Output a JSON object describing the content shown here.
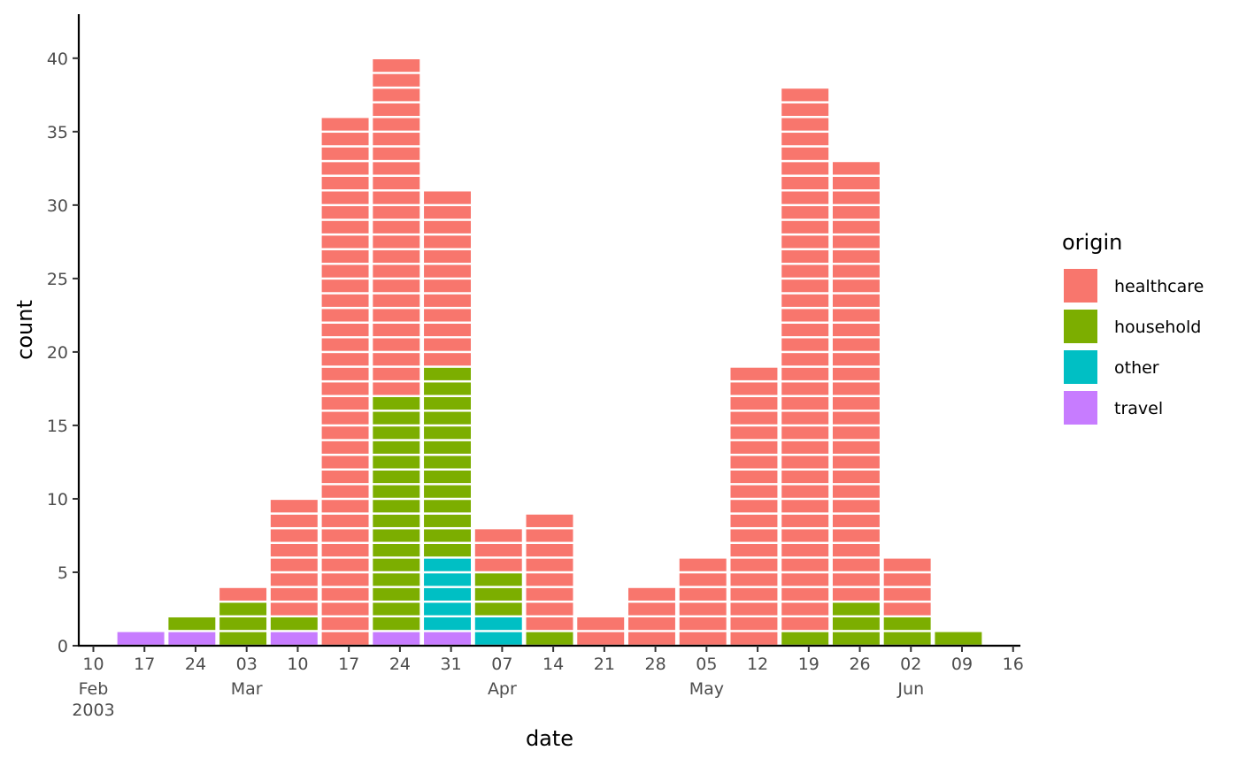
{
  "chart_data": {
    "type": "bar",
    "stacked": true,
    "bar_style": "unit-tiles",
    "xlabel": "date",
    "ylabel": "count",
    "ylim": [
      0,
      43
    ],
    "y_ticks": [
      0,
      5,
      10,
      15,
      20,
      25,
      30,
      35,
      40
    ],
    "x_scale": "date",
    "bin_width_days": 7,
    "xlim": [
      "2003-02-08",
      "2003-06-17"
    ],
    "x_ticks": [
      {
        "date": "2003-02-10",
        "label": "10",
        "sublabel": "Feb\n2003"
      },
      {
        "date": "2003-02-17",
        "label": "17",
        "sublabel": ""
      },
      {
        "date": "2003-02-24",
        "label": "24",
        "sublabel": ""
      },
      {
        "date": "2003-03-03",
        "label": "03",
        "sublabel": "Mar"
      },
      {
        "date": "2003-03-10",
        "label": "10",
        "sublabel": ""
      },
      {
        "date": "2003-03-17",
        "label": "17",
        "sublabel": ""
      },
      {
        "date": "2003-03-24",
        "label": "24",
        "sublabel": ""
      },
      {
        "date": "2003-03-31",
        "label": "31",
        "sublabel": ""
      },
      {
        "date": "2003-04-07",
        "label": "07",
        "sublabel": "Apr"
      },
      {
        "date": "2003-04-14",
        "label": "14",
        "sublabel": ""
      },
      {
        "date": "2003-04-21",
        "label": "21",
        "sublabel": ""
      },
      {
        "date": "2003-04-28",
        "label": "28",
        "sublabel": ""
      },
      {
        "date": "2003-05-05",
        "label": "05",
        "sublabel": "May"
      },
      {
        "date": "2003-05-12",
        "label": "12",
        "sublabel": ""
      },
      {
        "date": "2003-05-19",
        "label": "19",
        "sublabel": ""
      },
      {
        "date": "2003-05-26",
        "label": "26",
        "sublabel": ""
      },
      {
        "date": "2003-06-02",
        "label": "02",
        "sublabel": "Jun"
      },
      {
        "date": "2003-06-09",
        "label": "09",
        "sublabel": ""
      },
      {
        "date": "2003-06-16",
        "label": "16",
        "sublabel": ""
      }
    ],
    "bins": [
      {
        "start": "2003-02-13",
        "end": "2003-02-20"
      },
      {
        "start": "2003-02-20",
        "end": "2003-02-27"
      },
      {
        "start": "2003-02-27",
        "end": "2003-03-06"
      },
      {
        "start": "2003-03-06",
        "end": "2003-03-13"
      },
      {
        "start": "2003-03-13",
        "end": "2003-03-20"
      },
      {
        "start": "2003-03-20",
        "end": "2003-03-27"
      },
      {
        "start": "2003-03-27",
        "end": "2003-04-03"
      },
      {
        "start": "2003-04-03",
        "end": "2003-04-10"
      },
      {
        "start": "2003-04-10",
        "end": "2003-04-17"
      },
      {
        "start": "2003-04-17",
        "end": "2003-04-24"
      },
      {
        "start": "2003-04-24",
        "end": "2003-05-01"
      },
      {
        "start": "2003-05-01",
        "end": "2003-05-08"
      },
      {
        "start": "2003-05-08",
        "end": "2003-05-15"
      },
      {
        "start": "2003-05-15",
        "end": "2003-05-22"
      },
      {
        "start": "2003-05-22",
        "end": "2003-05-29"
      },
      {
        "start": "2003-05-29",
        "end": "2003-06-05"
      },
      {
        "start": "2003-06-05",
        "end": "2003-06-12"
      }
    ],
    "stack_order_bottom_to_top": [
      "travel",
      "other",
      "household",
      "healthcare"
    ],
    "series": [
      {
        "name": "healthcare",
        "color": "#F8766D",
        "values": [
          0,
          0,
          1,
          8,
          36,
          23,
          12,
          3,
          8,
          2,
          4,
          6,
          19,
          37,
          30,
          4,
          0
        ]
      },
      {
        "name": "household",
        "color": "#7CAE00",
        "values": [
          0,
          1,
          3,
          1,
          0,
          16,
          13,
          3,
          1,
          0,
          0,
          0,
          0,
          1,
          3,
          2,
          1
        ]
      },
      {
        "name": "other",
        "color": "#00BFC4",
        "values": [
          0,
          0,
          0,
          0,
          0,
          0,
          5,
          2,
          0,
          0,
          0,
          0,
          0,
          0,
          0,
          0,
          0
        ]
      },
      {
        "name": "travel",
        "color": "#C77CFF",
        "values": [
          1,
          1,
          0,
          1,
          0,
          1,
          1,
          0,
          0,
          0,
          0,
          0,
          0,
          0,
          0,
          0,
          0
        ]
      }
    ],
    "legend": {
      "title": "origin",
      "position": "right"
    },
    "grid": false
  }
}
